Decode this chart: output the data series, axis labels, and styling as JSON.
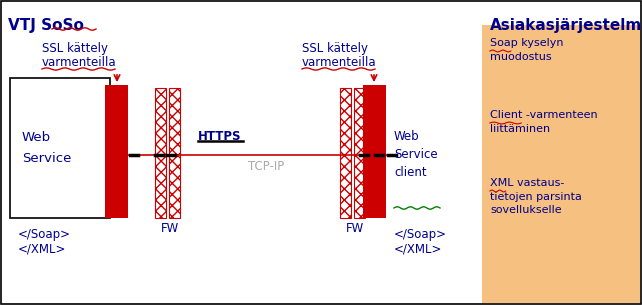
{
  "bg_color": "#ffffff",
  "border_color": "#000000",
  "dark_blue": "#00008B",
  "red_color": "#CC0000",
  "orange_bg": "#F5C080",
  "gray_color": "#AAAAAA",
  "title_left": "VTJ SoSo",
  "title_right": "Asiakasjärjestelmä",
  "ssl_left_line1": "SSL kättely",
  "ssl_left_line2": "varmenteilla",
  "ssl_right_line1": "SSL kättely",
  "ssl_right_line2": "varmenteilla",
  "https_label": "HTTPS",
  "tcp_label": "TCP-IP",
  "fw_left_label": "FW",
  "fw_right_label": "FW",
  "ws_label": "Web\nService",
  "ws_client_label": "Web\nService\nclient",
  "soap_xml_left_1": "</Soap>",
  "soap_xml_left_2": "</XML>",
  "soap_xml_right_1": "</Soap>",
  "soap_xml_right_2": "</XML>",
  "right_panel_item1": "Soap kyselyn\nmuodostus",
  "right_panel_item2": "Client -varmenteen\nliittäminen",
  "right_panel_item3": "XML vastaus-\ntietojen parsinta\nsovellukselle",
  "figsize": [
    6.42,
    3.05
  ],
  "dpi": 100
}
